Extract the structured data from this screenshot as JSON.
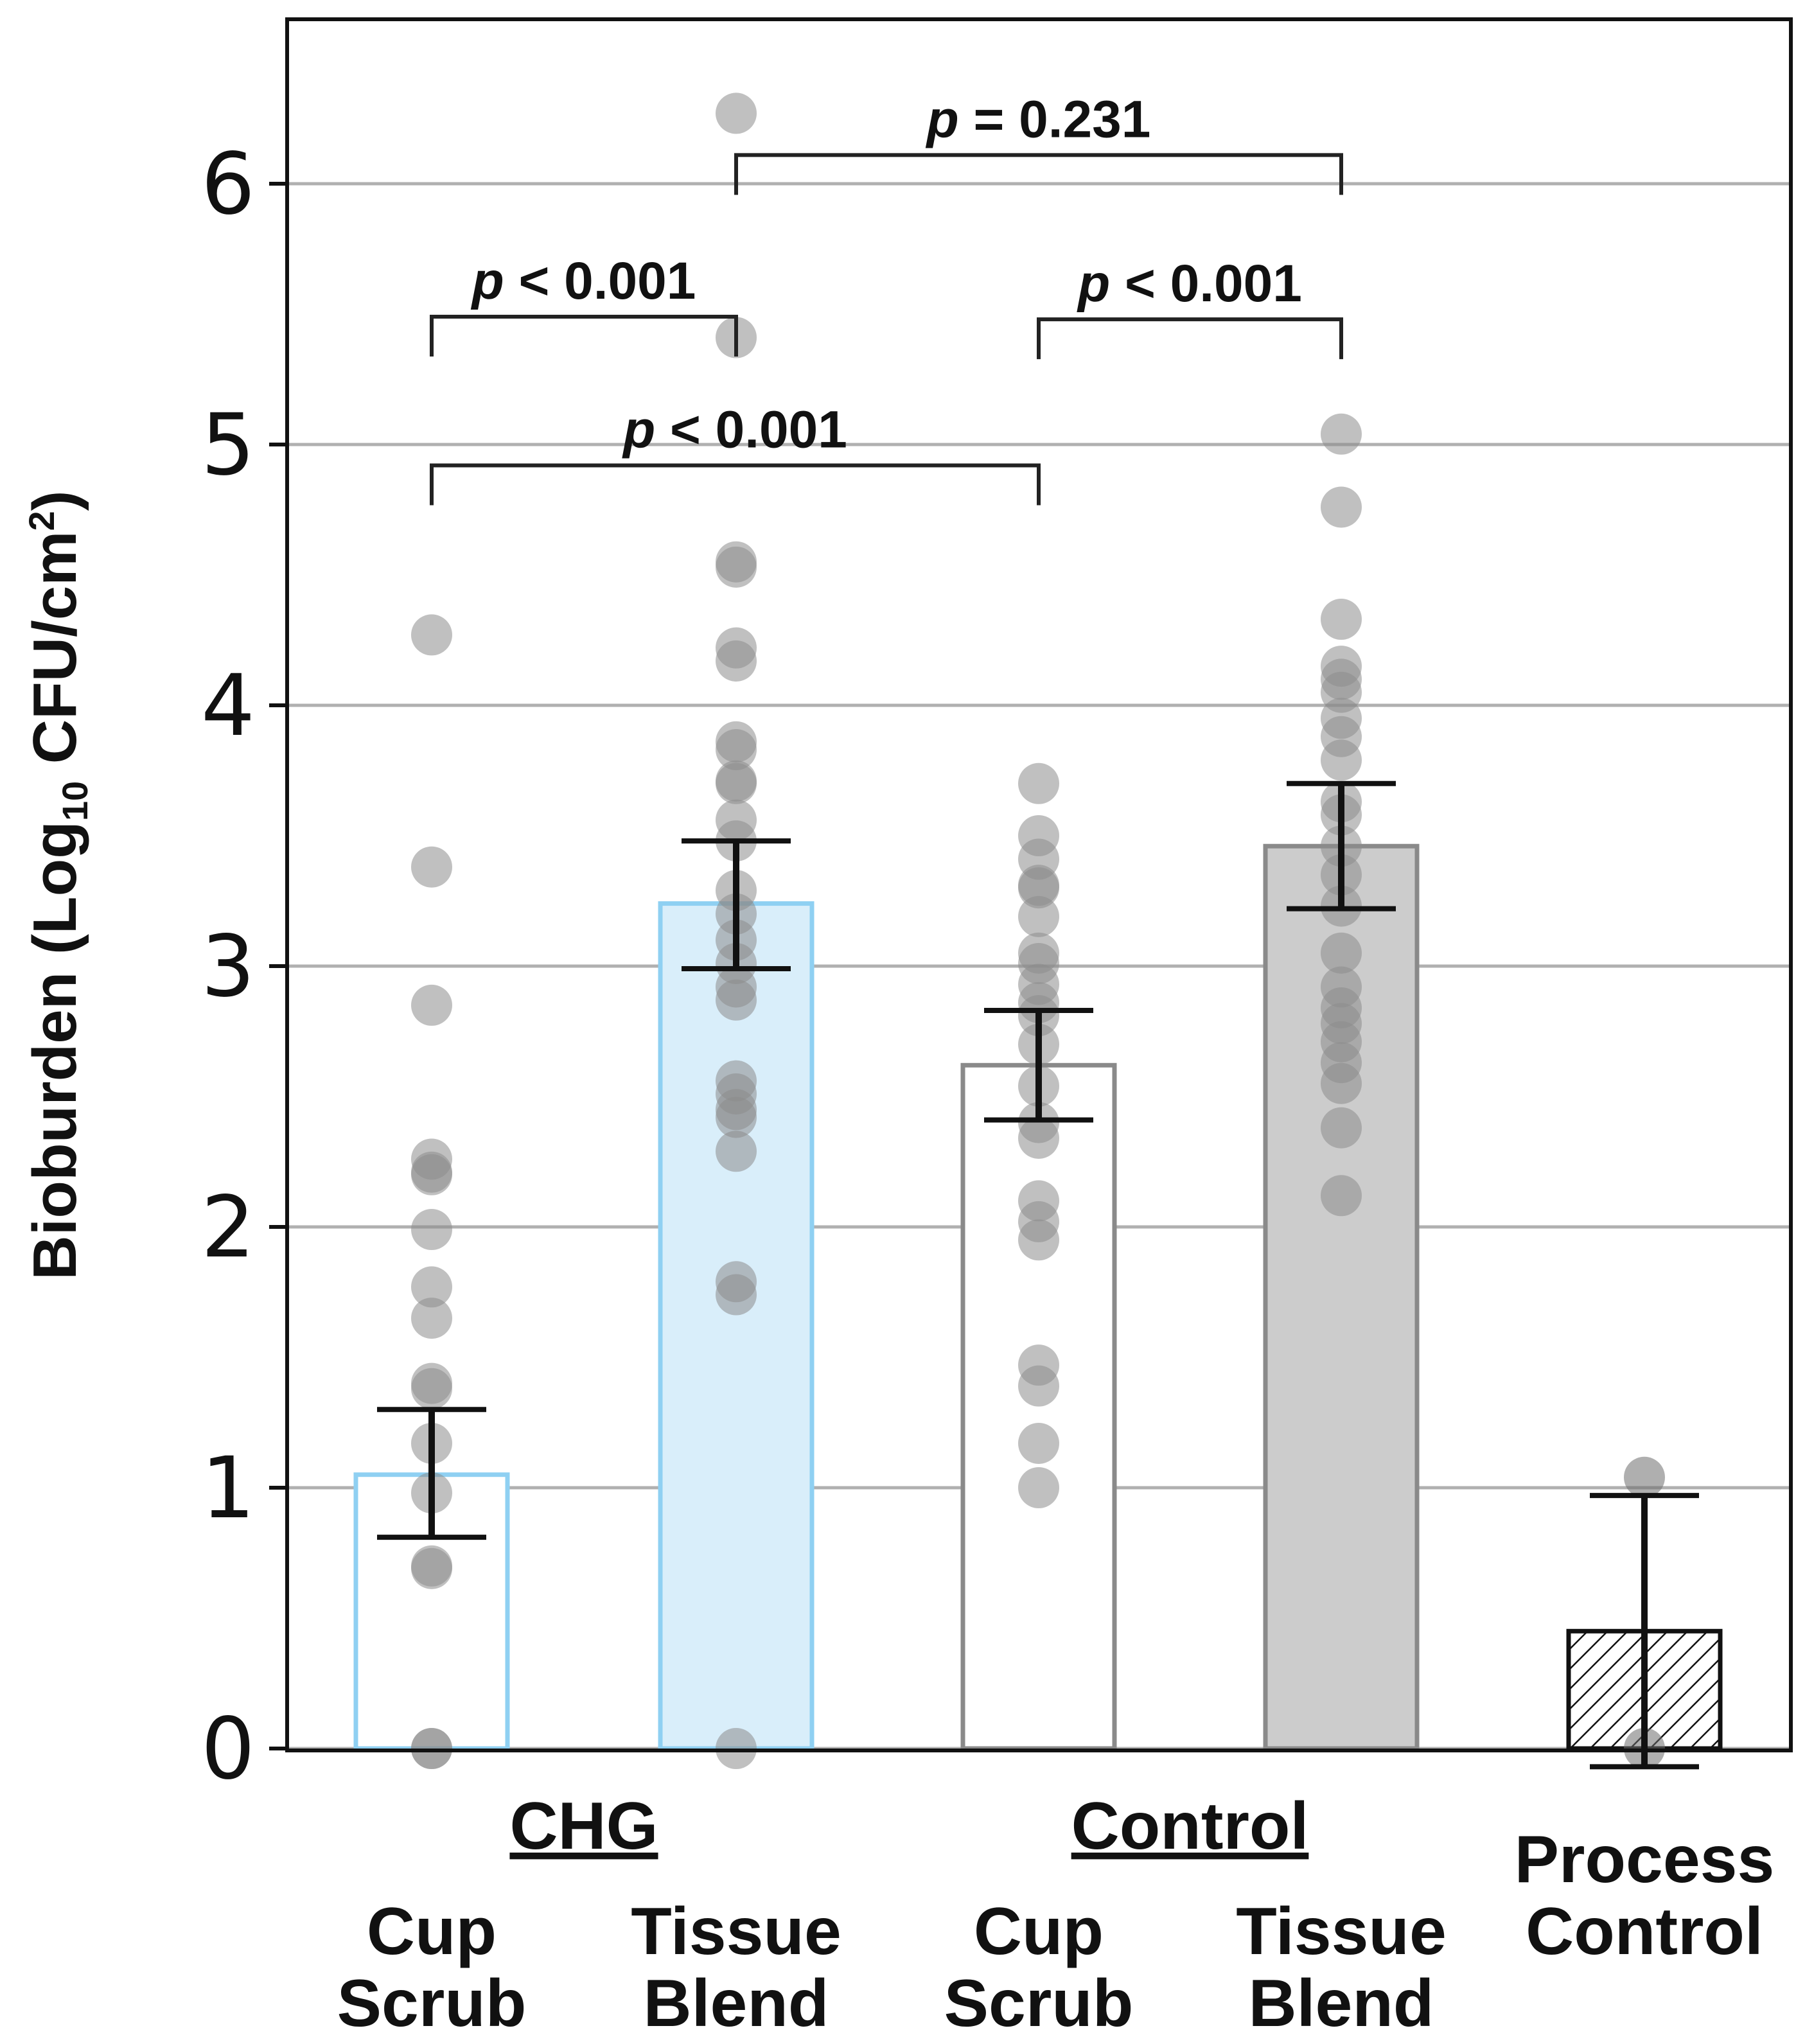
{
  "chart_data": {
    "type": "bar",
    "ylabel": "Bioburden (Log",
    "ylabel_subscript": "10",
    "ylabel_tail": " CFU/cm",
    "ylabel_superscript": "2",
    "ylabel_close": ")",
    "ylim": [
      0,
      6.6
    ],
    "yticks": [
      "0",
      "1",
      "2",
      "3",
      "4",
      "5",
      "6"
    ],
    "grid": true,
    "groups": [
      {
        "label": "CHG",
        "bars": [
          0,
          1
        ]
      },
      {
        "label": "Control",
        "bars": [
          2,
          3
        ]
      }
    ],
    "bars": [
      {
        "lines": [
          "Cup",
          "Scrub"
        ],
        "mean": 1.05,
        "err_low": 0.81,
        "err_high": 1.3,
        "style": "outline",
        "color": "#8fd0f2",
        "fill": "#ffffff",
        "points": [
          0.0,
          0.0,
          0.69,
          0.7,
          0.98,
          1.17,
          1.38,
          1.4,
          1.65,
          1.77,
          1.99,
          2.2,
          2.21,
          2.26,
          2.85,
          3.38,
          4.27
        ]
      },
      {
        "lines": [
          "Tissue",
          "Blend"
        ],
        "mean": 3.24,
        "err_low": 2.99,
        "err_high": 3.48,
        "style": "filled",
        "color": "#8fd0f2",
        "fill": "#d9eefa",
        "points": [
          0.0,
          1.74,
          1.79,
          2.29,
          2.42,
          2.45,
          2.51,
          2.56,
          2.87,
          2.92,
          3.01,
          3.1,
          3.2,
          3.29,
          3.48,
          3.56,
          3.7,
          3.71,
          3.83,
          3.86,
          4.17,
          4.22,
          4.53,
          4.55,
          5.41,
          6.27
        ]
      },
      {
        "lines": [
          "Cup",
          "Scrub"
        ],
        "mean": 2.62,
        "err_low": 2.41,
        "err_high": 2.83,
        "style": "outline",
        "color": "#8a8a8a",
        "fill": "#ffffff",
        "points": [
          1.0,
          1.17,
          1.39,
          1.47,
          1.95,
          2.02,
          2.1,
          2.34,
          2.4,
          2.54,
          2.7,
          2.81,
          2.86,
          2.93,
          3.01,
          3.05,
          3.19,
          3.3,
          3.31,
          3.41,
          3.5,
          3.7
        ]
      },
      {
        "lines": [
          "Tissue",
          "Blend"
        ],
        "mean": 3.46,
        "err_low": 3.22,
        "err_high": 3.7,
        "style": "filled",
        "color": "#8a8a8a",
        "fill": "#cccccc",
        "points": [
          2.12,
          2.38,
          2.55,
          2.63,
          2.71,
          2.78,
          2.84,
          2.92,
          3.05,
          3.23,
          3.35,
          3.46,
          3.58,
          3.63,
          3.79,
          3.88,
          3.95,
          4.05,
          4.1,
          4.15,
          4.33,
          4.76,
          5.04
        ]
      },
      {
        "lines": [
          "Process",
          "Control"
        ],
        "mean": 0.45,
        "err_low": -0.07,
        "err_high": 0.97,
        "style": "hatched",
        "color": "#111111",
        "fill": "#ffffff",
        "points": [
          0.0,
          1.04
        ]
      }
    ],
    "comparisons": [
      {
        "from": 0,
        "to": 1,
        "y": 5.49,
        "label_pre": "p",
        "label": " < 0.001"
      },
      {
        "from": 2,
        "to": 3,
        "y": 5.48,
        "label_pre": "p",
        "label": " < 0.001"
      },
      {
        "from": 0,
        "to": 2,
        "y": 4.92,
        "label_pre": "p",
        "label": " < 0.001"
      },
      {
        "from": 1,
        "to": 3,
        "y": 6.11,
        "label_pre": "p",
        "label": " = 0.231"
      }
    ]
  }
}
